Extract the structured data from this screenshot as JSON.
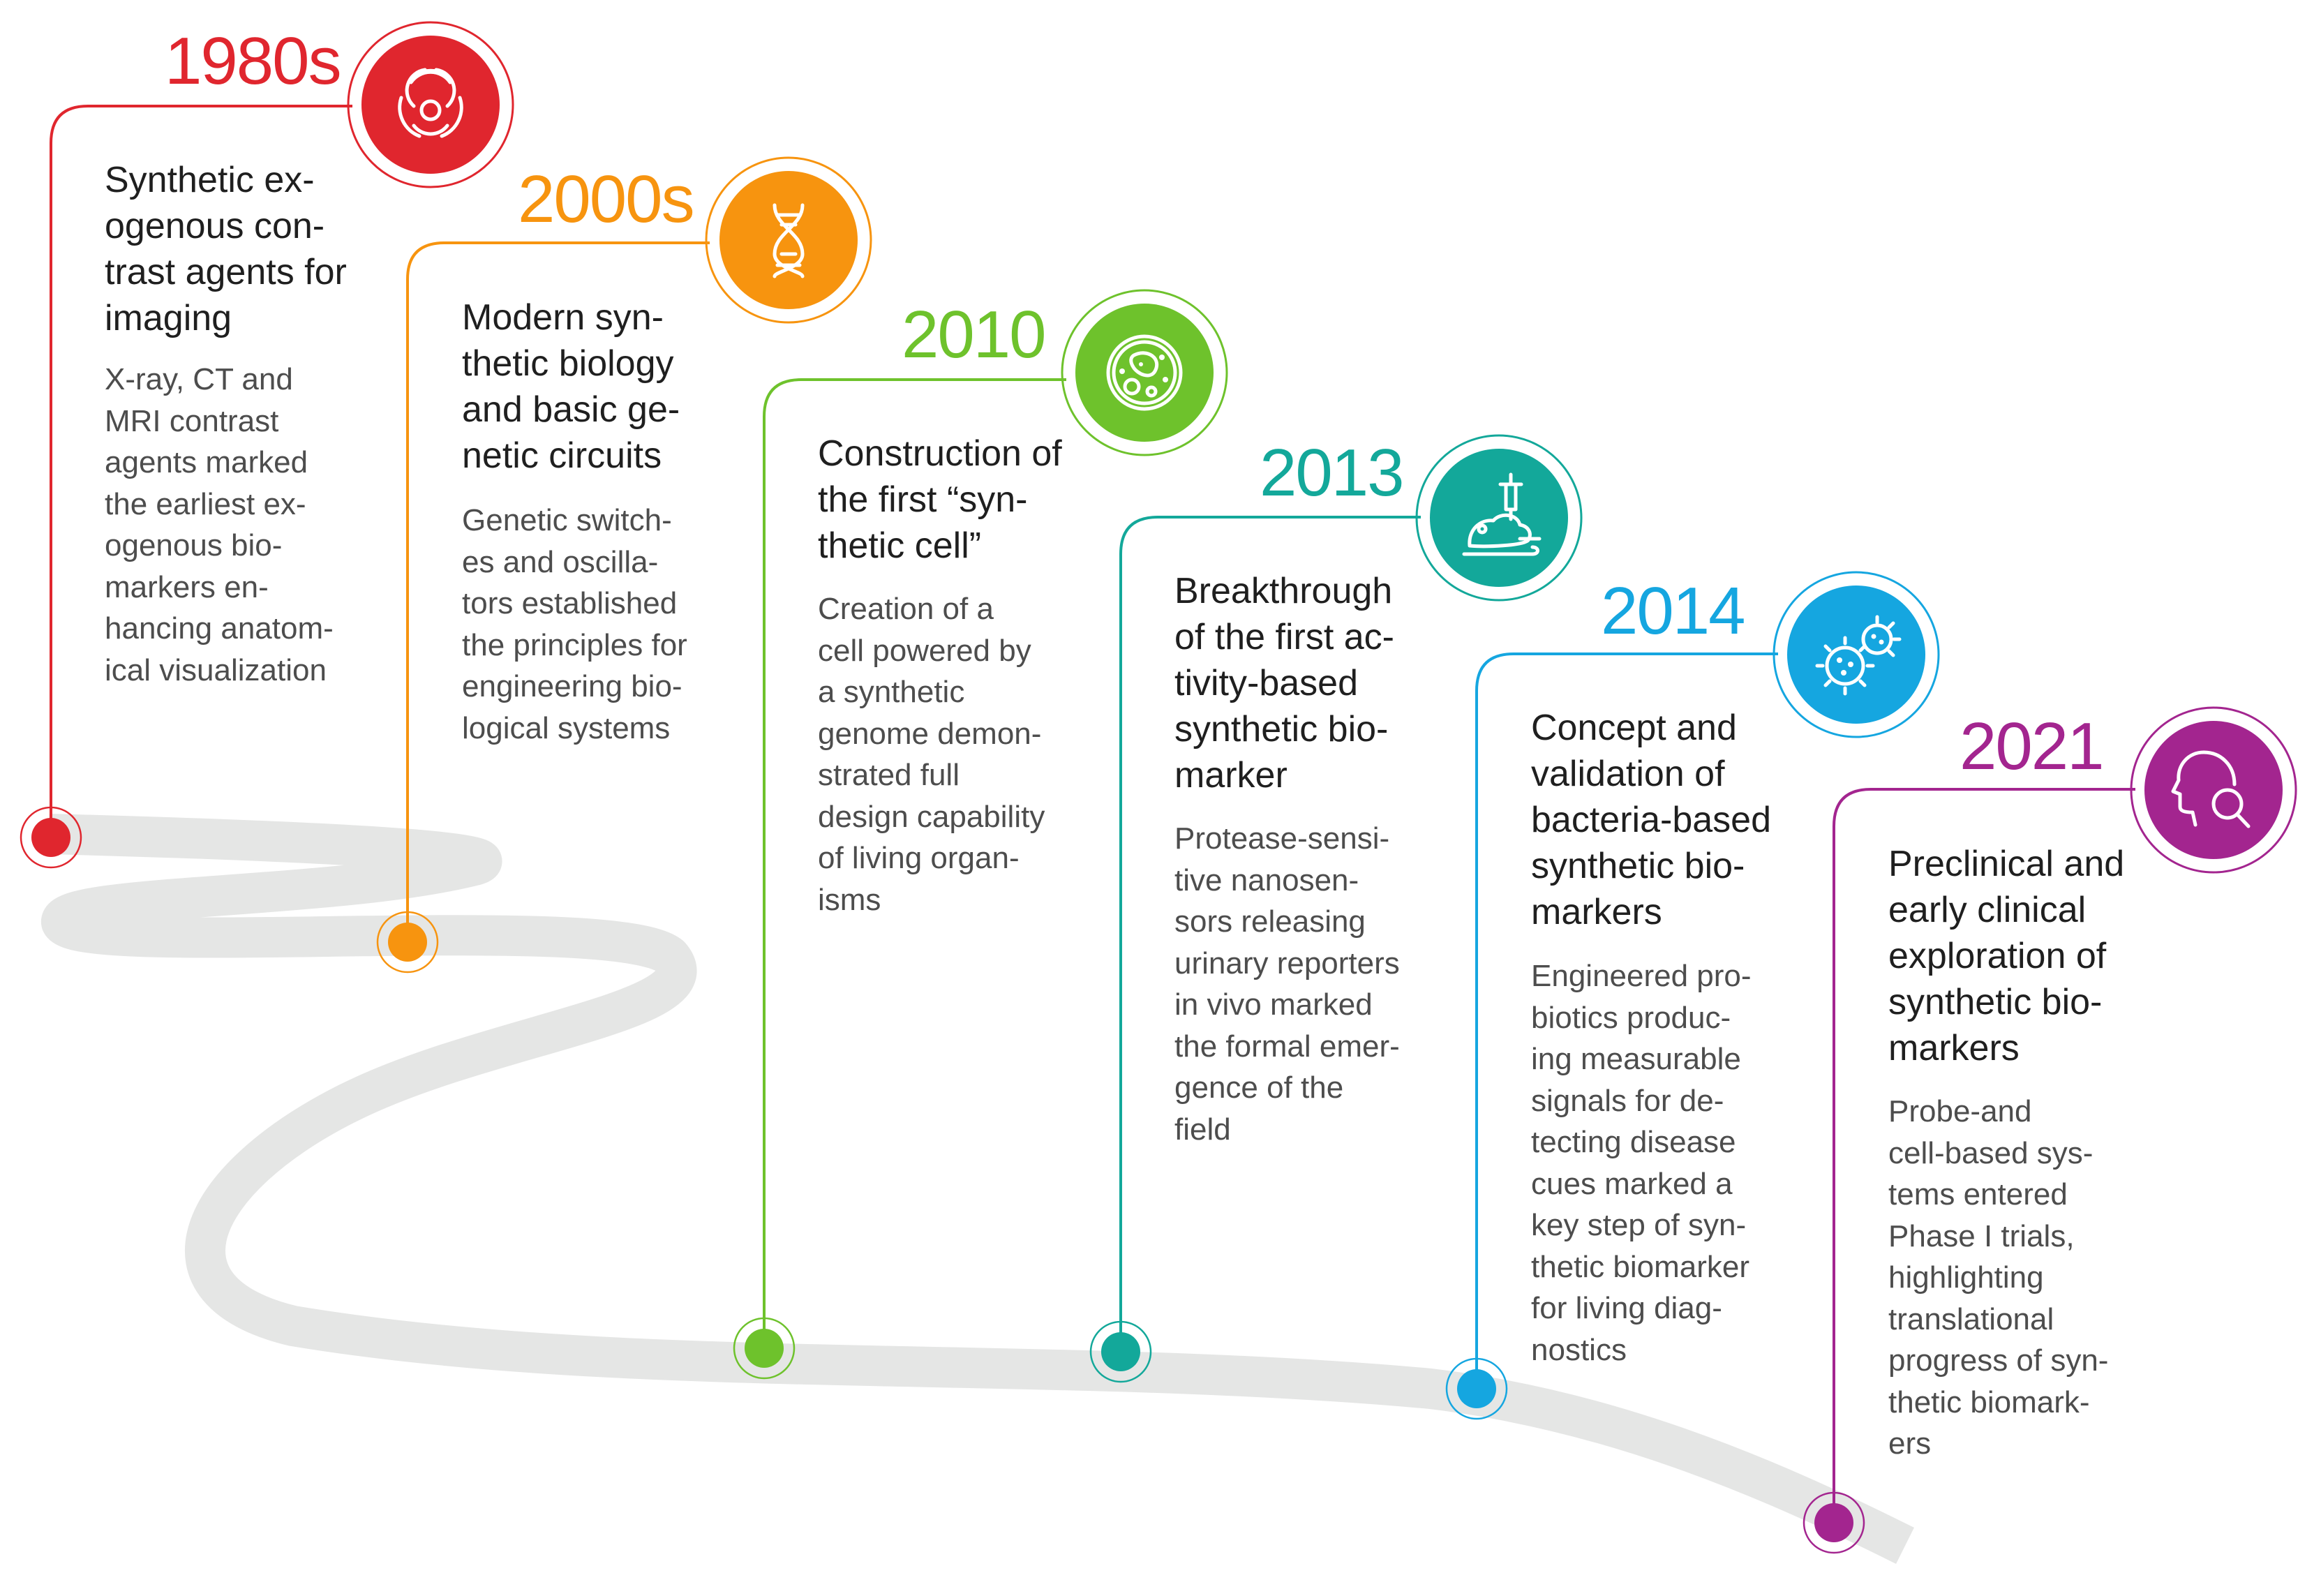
{
  "milestones": [
    {
      "year": "1980s",
      "color": "#e0262e",
      "icon": "biohazard-icon",
      "heading": "Synthetic ex-\nogenous con-\ntrast agents for\nimaging",
      "description": "X-ray, CT and\nMRI contrast\nagents marked\nthe earliest ex-\nogenous bio-\nmarkers en-\nhancing anatom-\nical visualization"
    },
    {
      "year": "2000s",
      "color": "#f7940f",
      "icon": "dna-icon",
      "heading": "Modern syn-\nthetic biology\nand basic ge-\nnetic circuits",
      "description": "Genetic switch-\nes and oscilla-\ntors established\nthe principles for\nengineering bio-\nlogical systems"
    },
    {
      "year": "2010",
      "color": "#6ec22c",
      "icon": "petri-dish-cell-icon",
      "heading": "Construction of\nthe first “syn-\nthetic cell”",
      "description": "Creation of a\ncell powered by\na synthetic\ngenome demon-\nstrated full\ndesign capability\nof living organ-\nisms"
    },
    {
      "year": "2013",
      "color": "#13a89a",
      "icon": "mouse-syringe-icon",
      "heading": "Breakthrough\nof the first ac-\ntivity-based\nsynthetic bio-\nmarker",
      "description": "Protease-sensi-\ntive nanosen-\nsors releasing\nurinary reporters\nin vivo marked\nthe formal emer-\ngence of the\nfield"
    },
    {
      "year": "2014",
      "color": "#15a6e0",
      "icon": "bacteria-icon",
      "heading": "Concept and\nvalidation of\nbacteria-based\nsynthetic bio-\nmarkers",
      "description": "Engineered pro-\nbiotics produc-\ning measurable\nsignals for de-\ntecting disease\ncues marked a\nkey step of syn-\nthetic biomarker\nfor living diag-\nnostics"
    },
    {
      "year": "2021",
      "color": "#a3258f",
      "icon": "head-magnifier-icon",
      "heading": "Preclinical and\nearly clinical\nexploration of\nsynthetic bio-\nmarkers",
      "description": "Probe-and\ncell-based sys-\ntems entered\nPhase I trials,\nhighlighting\ntranslational\nprogress of syn-\nthetic biomark-\ners"
    }
  ],
  "road_color": "#e5e6e5"
}
